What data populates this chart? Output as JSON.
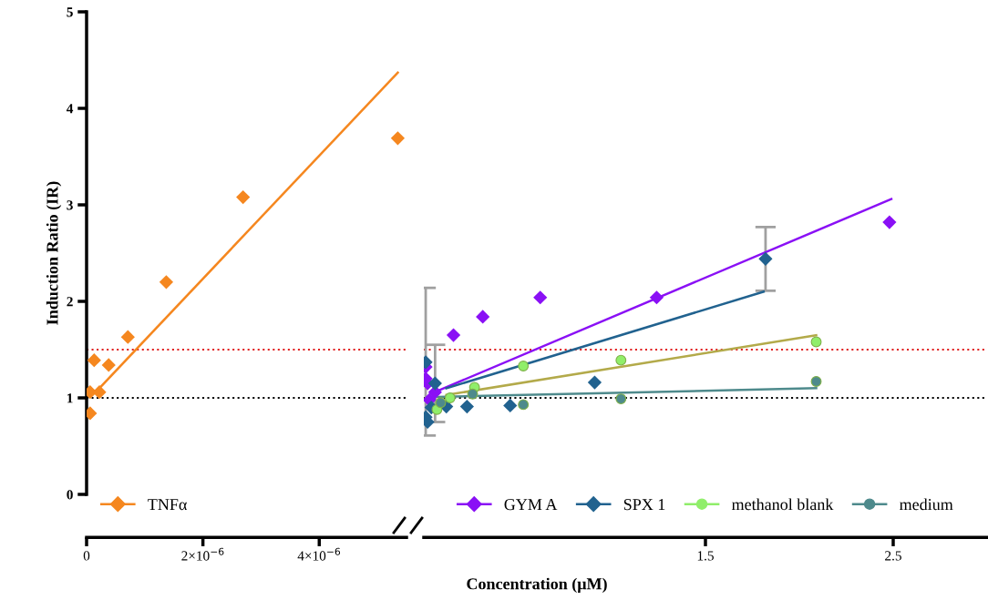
{
  "chart_data": [
    {
      "type": "scatter",
      "ylabel": "Induction Ratio (IR)",
      "xlabel": "Concentration (μM)",
      "xlim": [
        0,
        5.5e-06
      ],
      "ylim": [
        0,
        5
      ],
      "xticks": [
        {
          "value": 0,
          "label": "0"
        },
        {
          "value": 2e-06,
          "label": "2×10$^{−6}$"
        },
        {
          "value": 4e-06,
          "label": "4×10$^{−6}$"
        }
      ],
      "yticks": [
        0,
        1,
        2,
        3,
        4,
        5
      ],
      "grid": false,
      "legend": "bottom left",
      "series": [
        {
          "name": "TNFα",
          "color": "#f5871f",
          "marker": "diamond",
          "x": [
            6e-08,
            6e-08,
            1.3e-07,
            2.2e-07,
            3.8e-07,
            7.1e-07,
            1.37e-06,
            2.69e-06,
            5.35e-06
          ],
          "values": [
            0.84,
            1.06,
            1.39,
            1.06,
            1.34,
            1.63,
            2.2,
            3.08,
            3.69
          ]
        },
        {
          "type": "line",
          "color": "#f5871f",
          "x": [
            2.2e-07,
            5.35e-06
          ],
          "values": [
            1.1,
            4.37
          ]
        }
      ],
      "ref_lines": [
        {
          "axis": "y",
          "value": 1,
          "color": "#000000",
          "line_style": "dotted"
        },
        {
          "axis": "y",
          "value": 1.5,
          "color": "#e02020",
          "line_style": "dotted"
        }
      ]
    },
    {
      "type": "scatter",
      "xlim": [
        0,
        3
      ],
      "ylim": [
        0,
        5
      ],
      "xticks": [
        1.5,
        2.5
      ],
      "yticks": [
        0,
        1,
        2,
        3,
        4,
        5
      ],
      "tick_labels": "x",
      "grid": false,
      "legend": "bottom",
      "series": [
        {
          "name": "GYM A",
          "color": "#8a10f5",
          "marker": "diamond",
          "x": [
            0.01,
            0.01,
            0.02,
            0.03,
            0.06,
            0.158,
            0.314,
            0.62,
            1.24,
            2.48
          ],
          "values": [
            1.32,
            1.2,
            1.15,
            0.98,
            1.06,
            1.65,
            1.84,
            2.04,
            2.04,
            2.82
          ]
        },
        {
          "name": "SPX 1",
          "color": "#21628f",
          "marker": "diamond",
          "x": [
            0.01,
            0.04,
            0.01,
            0.02,
            0.06,
            0.12,
            0.23,
            0.46,
            0.91,
            1.82
          ],
          "values": [
            1.37,
            0.9,
            0.8,
            0.75,
            1.15,
            0.91,
            0.91,
            0.92,
            1.16,
            2.44
          ],
          "errors": [
            [
              0.61,
              2.14
            ],
            null,
            null,
            null,
            [
              0.75,
              1.55
            ],
            null,
            null,
            null,
            null,
            [
              2.11,
              2.77
            ]
          ]
        },
        {
          "name": "methanol blank",
          "color": "#90ee6a",
          "marker": "circle",
          "x": [
            0.07,
            0.14,
            0.27,
            0.53,
            1.05,
            2.09
          ],
          "values": [
            0.88,
            1.0,
            1.11,
            1.33,
            1.39,
            1.58
          ]
        },
        {
          "name": "medium",
          "color": "#4e8a8c",
          "marker": "circle",
          "x": [
            0.09,
            0.26,
            0.53,
            1.05,
            2.09
          ],
          "values": [
            0.95,
            1.04,
            0.93,
            0.99,
            1.17
          ]
        },
        {
          "type": "line",
          "color": "#8a10f5",
          "x": [
            0.07,
            2.49
          ],
          "values": [
            1.07,
            3.06
          ]
        },
        {
          "type": "line",
          "color": "#21628f",
          "x": [
            0.12,
            1.81
          ],
          "values": [
            1.1,
            2.1
          ]
        },
        {
          "type": "line",
          "color": "#b3aa4a",
          "x": [
            0.12,
            2.09
          ],
          "values": [
            1.03,
            1.65
          ]
        },
        {
          "type": "line",
          "color": "#4e8a8c",
          "x": [
            0.07,
            2.09
          ],
          "values": [
            1.01,
            1.1
          ]
        }
      ],
      "ref_lines": [
        {
          "axis": "y",
          "value": 1,
          "color": "#000000",
          "line_style": "dotted"
        },
        {
          "axis": "y",
          "value": 1.5,
          "color": "#e02020",
          "line_style": "dotted"
        }
      ]
    }
  ]
}
